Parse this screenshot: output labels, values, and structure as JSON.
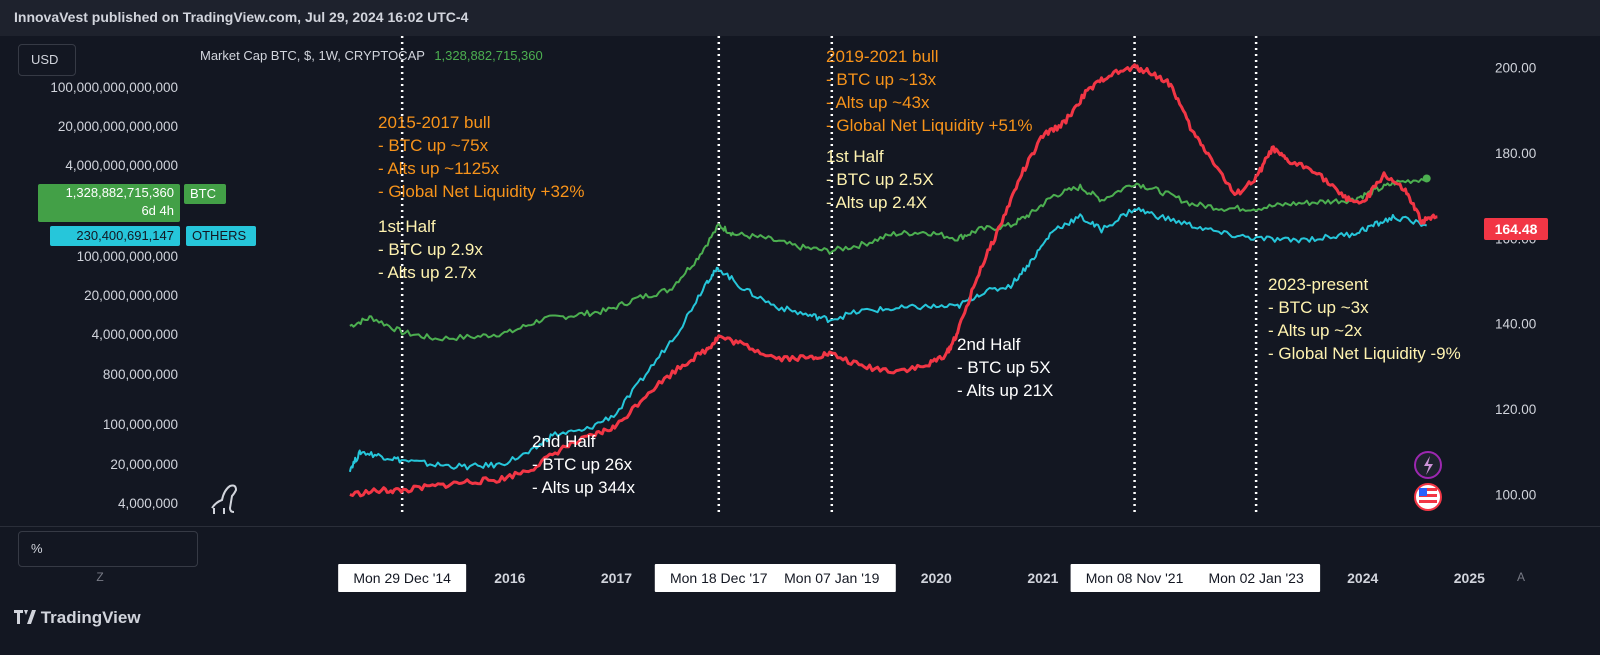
{
  "header": {
    "publisher": "InnovaVest published on TradingView.com, Jul 29, 2024 16:02 UTC-4"
  },
  "controls": {
    "currency": "USD",
    "percent": "%",
    "zoom_z": "Z",
    "auto_a": "A"
  },
  "legend": {
    "text": "Market Cap BTC, $, 1W, CRYPTOCAP",
    "value": "1,328,882,715,360"
  },
  "badges": {
    "btc_value": "1,328,882,715,360",
    "btc_countdown": "6d 4h",
    "btc_tag": "BTC",
    "others_value": "230,400,691,147",
    "others_tag": "OTHERS",
    "liquidity_value": "164.48"
  },
  "branding": {
    "logo_text": "TradingView"
  },
  "colors": {
    "btc": "#4caf50",
    "others": "#26c6da",
    "liquidity": "#f23645",
    "bg": "#131722",
    "annotation_orange": "#f7931a",
    "annotation_yellow": "#fff3b0"
  },
  "icons": [
    "dino-icon",
    "lightning-icon",
    "us-flag-icon",
    "tradingview-logo-icon"
  ],
  "chart_data": {
    "type": "line",
    "left_axis": {
      "scale": "log",
      "ticks": [
        "100,000,000,000,000",
        "20,000,000,000,000",
        "4,000,000,000,000",
        "100,000,000,000",
        "20,000,000,000",
        "4,000,000,000",
        "800,000,000",
        "100,000,000",
        "20,000,000",
        "4,000,000"
      ]
    },
    "right_axis": {
      "ticks": [
        "200.00",
        "180.00",
        "160.00",
        "140.00",
        "120.00",
        "100.00"
      ],
      "ylim": [
        95,
        205
      ]
    },
    "x_axis": {
      "ticks": [
        "2016",
        "2017",
        "2020",
        "2021",
        "2024",
        "2025"
      ],
      "xlim": [
        2013.0,
        2025.1
      ]
    },
    "markers": [
      {
        "label": "Mon 29 Dec '14",
        "x": 2014.99
      },
      {
        "label": "Mon 18 Dec '17",
        "x": 2017.96
      },
      {
        "label": "Mon 07 Jan '19",
        "x": 2019.02
      },
      {
        "label": "Mon 08 Nov '21",
        "x": 2021.86
      },
      {
        "label": "Mon 02 Jan '23",
        "x": 2023.0
      }
    ],
    "series": [
      {
        "name": "BTC",
        "axis": "right",
        "color": "#4caf50",
        "points": [
          [
            2014.5,
            139.5
          ],
          [
            2014.7,
            141.5
          ],
          [
            2014.99,
            138
          ],
          [
            2015.3,
            136.5
          ],
          [
            2015.7,
            137
          ],
          [
            2016.0,
            138
          ],
          [
            2016.3,
            141
          ],
          [
            2016.6,
            142
          ],
          [
            2016.9,
            143
          ],
          [
            2017.2,
            146
          ],
          [
            2017.5,
            148
          ],
          [
            2017.75,
            155
          ],
          [
            2017.96,
            163
          ],
          [
            2018.1,
            161
          ],
          [
            2018.4,
            160
          ],
          [
            2018.7,
            158
          ],
          [
            2019.0,
            157
          ],
          [
            2019.3,
            158.5
          ],
          [
            2019.6,
            161
          ],
          [
            2019.9,
            161.5
          ],
          [
            2020.2,
            160
          ],
          [
            2020.4,
            162
          ],
          [
            2020.7,
            163
          ],
          [
            2020.9,
            166
          ],
          [
            2021.1,
            170
          ],
          [
            2021.35,
            172
          ],
          [
            2021.55,
            169
          ],
          [
            2021.86,
            173
          ],
          [
            2022.1,
            171
          ],
          [
            2022.4,
            168
          ],
          [
            2022.7,
            167
          ],
          [
            2023.0,
            167
          ],
          [
            2023.3,
            168
          ],
          [
            2023.6,
            168.5
          ],
          [
            2023.9,
            169
          ],
          [
            2024.1,
            171
          ],
          [
            2024.3,
            173
          ],
          [
            2024.6,
            174
          ]
        ]
      },
      {
        "name": "OTHERS",
        "axis": "right",
        "color": "#26c6da",
        "points": [
          [
            2014.5,
            106
          ],
          [
            2014.6,
            110
          ],
          [
            2014.8,
            109
          ],
          [
            2015.0,
            108
          ],
          [
            2015.3,
            107
          ],
          [
            2015.6,
            106.5
          ],
          [
            2015.9,
            107
          ],
          [
            2016.2,
            110
          ],
          [
            2016.4,
            114
          ],
          [
            2016.7,
            115
          ],
          [
            2017.0,
            119
          ],
          [
            2017.3,
            129
          ],
          [
            2017.6,
            139
          ],
          [
            2017.85,
            150
          ],
          [
            2017.96,
            153
          ],
          [
            2018.2,
            148
          ],
          [
            2018.5,
            144
          ],
          [
            2018.8,
            142
          ],
          [
            2019.0,
            141
          ],
          [
            2019.3,
            143
          ],
          [
            2019.6,
            143.5
          ],
          [
            2019.9,
            144
          ],
          [
            2020.2,
            144
          ],
          [
            2020.4,
            147
          ],
          [
            2020.7,
            149
          ],
          [
            2020.9,
            155
          ],
          [
            2021.1,
            162
          ],
          [
            2021.35,
            165
          ],
          [
            2021.55,
            162
          ],
          [
            2021.86,
            167
          ],
          [
            2022.1,
            165
          ],
          [
            2022.4,
            163
          ],
          [
            2022.7,
            161
          ],
          [
            2023.0,
            160
          ],
          [
            2023.3,
            159.5
          ],
          [
            2023.6,
            160
          ],
          [
            2023.9,
            161
          ],
          [
            2024.1,
            163
          ],
          [
            2024.3,
            165
          ],
          [
            2024.6,
            163
          ]
        ]
      },
      {
        "name": "",
        "axis": "right",
        "color": "#f23645",
        "points": [
          [
            2014.5,
            100
          ],
          [
            2014.8,
            101
          ],
          [
            2015.0,
            101
          ],
          [
            2015.3,
            102
          ],
          [
            2015.6,
            103
          ],
          [
            2015.9,
            103.5
          ],
          [
            2016.2,
            106
          ],
          [
            2016.5,
            111
          ],
          [
            2016.8,
            114
          ],
          [
            2017.0,
            116
          ],
          [
            2017.3,
            124
          ],
          [
            2017.6,
            130
          ],
          [
            2017.85,
            134
          ],
          [
            2017.96,
            137
          ],
          [
            2018.2,
            135
          ],
          [
            2018.5,
            132
          ],
          [
            2018.8,
            132
          ],
          [
            2019.0,
            133
          ],
          [
            2019.3,
            130
          ],
          [
            2019.6,
            129
          ],
          [
            2019.9,
            130
          ],
          [
            2020.1,
            133
          ],
          [
            2020.2,
            138
          ],
          [
            2020.4,
            152
          ],
          [
            2020.6,
            163
          ],
          [
            2020.8,
            175
          ],
          [
            2021.0,
            184
          ],
          [
            2021.2,
            187
          ],
          [
            2021.4,
            194
          ],
          [
            2021.6,
            198
          ],
          [
            2021.86,
            200
          ],
          [
            2022.0,
            199
          ],
          [
            2022.2,
            196
          ],
          [
            2022.4,
            185
          ],
          [
            2022.6,
            178
          ],
          [
            2022.8,
            170
          ],
          [
            2023.0,
            174
          ],
          [
            2023.15,
            181
          ],
          [
            2023.3,
            178
          ],
          [
            2023.55,
            176
          ],
          [
            2023.8,
            170
          ],
          [
            2024.0,
            168
          ],
          [
            2024.2,
            175
          ],
          [
            2024.4,
            171
          ],
          [
            2024.55,
            164
          ],
          [
            2024.7,
            165
          ]
        ]
      }
    ],
    "annotations": [
      {
        "lines": [
          "2015-2017 bull",
          "- BTC up ~75x",
          "- Alts up ~1125x",
          "- Global Net Liquidity +32%"
        ],
        "color": "#f7931a"
      },
      {
        "lines": [
          "1st Half",
          "- BTC up 2.9x",
          "- Alts up 2.7x"
        ],
        "color": "#fff3b0"
      },
      {
        "lines": [
          "2nd Half",
          "- BTC up 26x",
          "- Alts up 344x"
        ],
        "color": "#ffffff"
      },
      {
        "lines": [
          "2019-2021 bull",
          "- BTC up ~13x",
          "- Alts up ~43x",
          "- Global Net Liquidity +51%"
        ],
        "color": "#f7931a"
      },
      {
        "lines": [
          "1st Half",
          "- BTC up 2.5X",
          "- Alts up 2.4X"
        ],
        "color": "#fff3b0"
      },
      {
        "lines": [
          "2nd Half",
          "- BTC up 5X",
          "- Alts up 21X"
        ],
        "color": "#ffffff"
      },
      {
        "lines": [
          "2023-present",
          "- BTC up ~3x",
          "- Alts up ~2x",
          "- Global Net Liquidity -9%"
        ],
        "color": "#fff3b0"
      }
    ]
  }
}
